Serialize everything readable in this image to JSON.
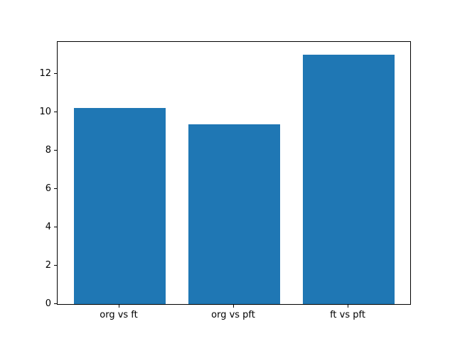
{
  "chart_data": {
    "type": "bar",
    "categories": [
      "org vs ft",
      "org vs pft",
      "ft vs pft"
    ],
    "values": [
      10.2,
      9.35,
      13.0
    ],
    "title": "",
    "xlabel": "",
    "ylabel": "",
    "ylim": [
      0,
      13.65
    ],
    "xlim": [
      -0.54,
      2.54
    ],
    "yticks": [
      0,
      2,
      4,
      6,
      8,
      10,
      12
    ],
    "bar_width_fraction": 0.8,
    "bar_color": "#1f77b4",
    "axis_color": "#000000",
    "background_color": "#ffffff",
    "grid": false,
    "legend": false
  }
}
